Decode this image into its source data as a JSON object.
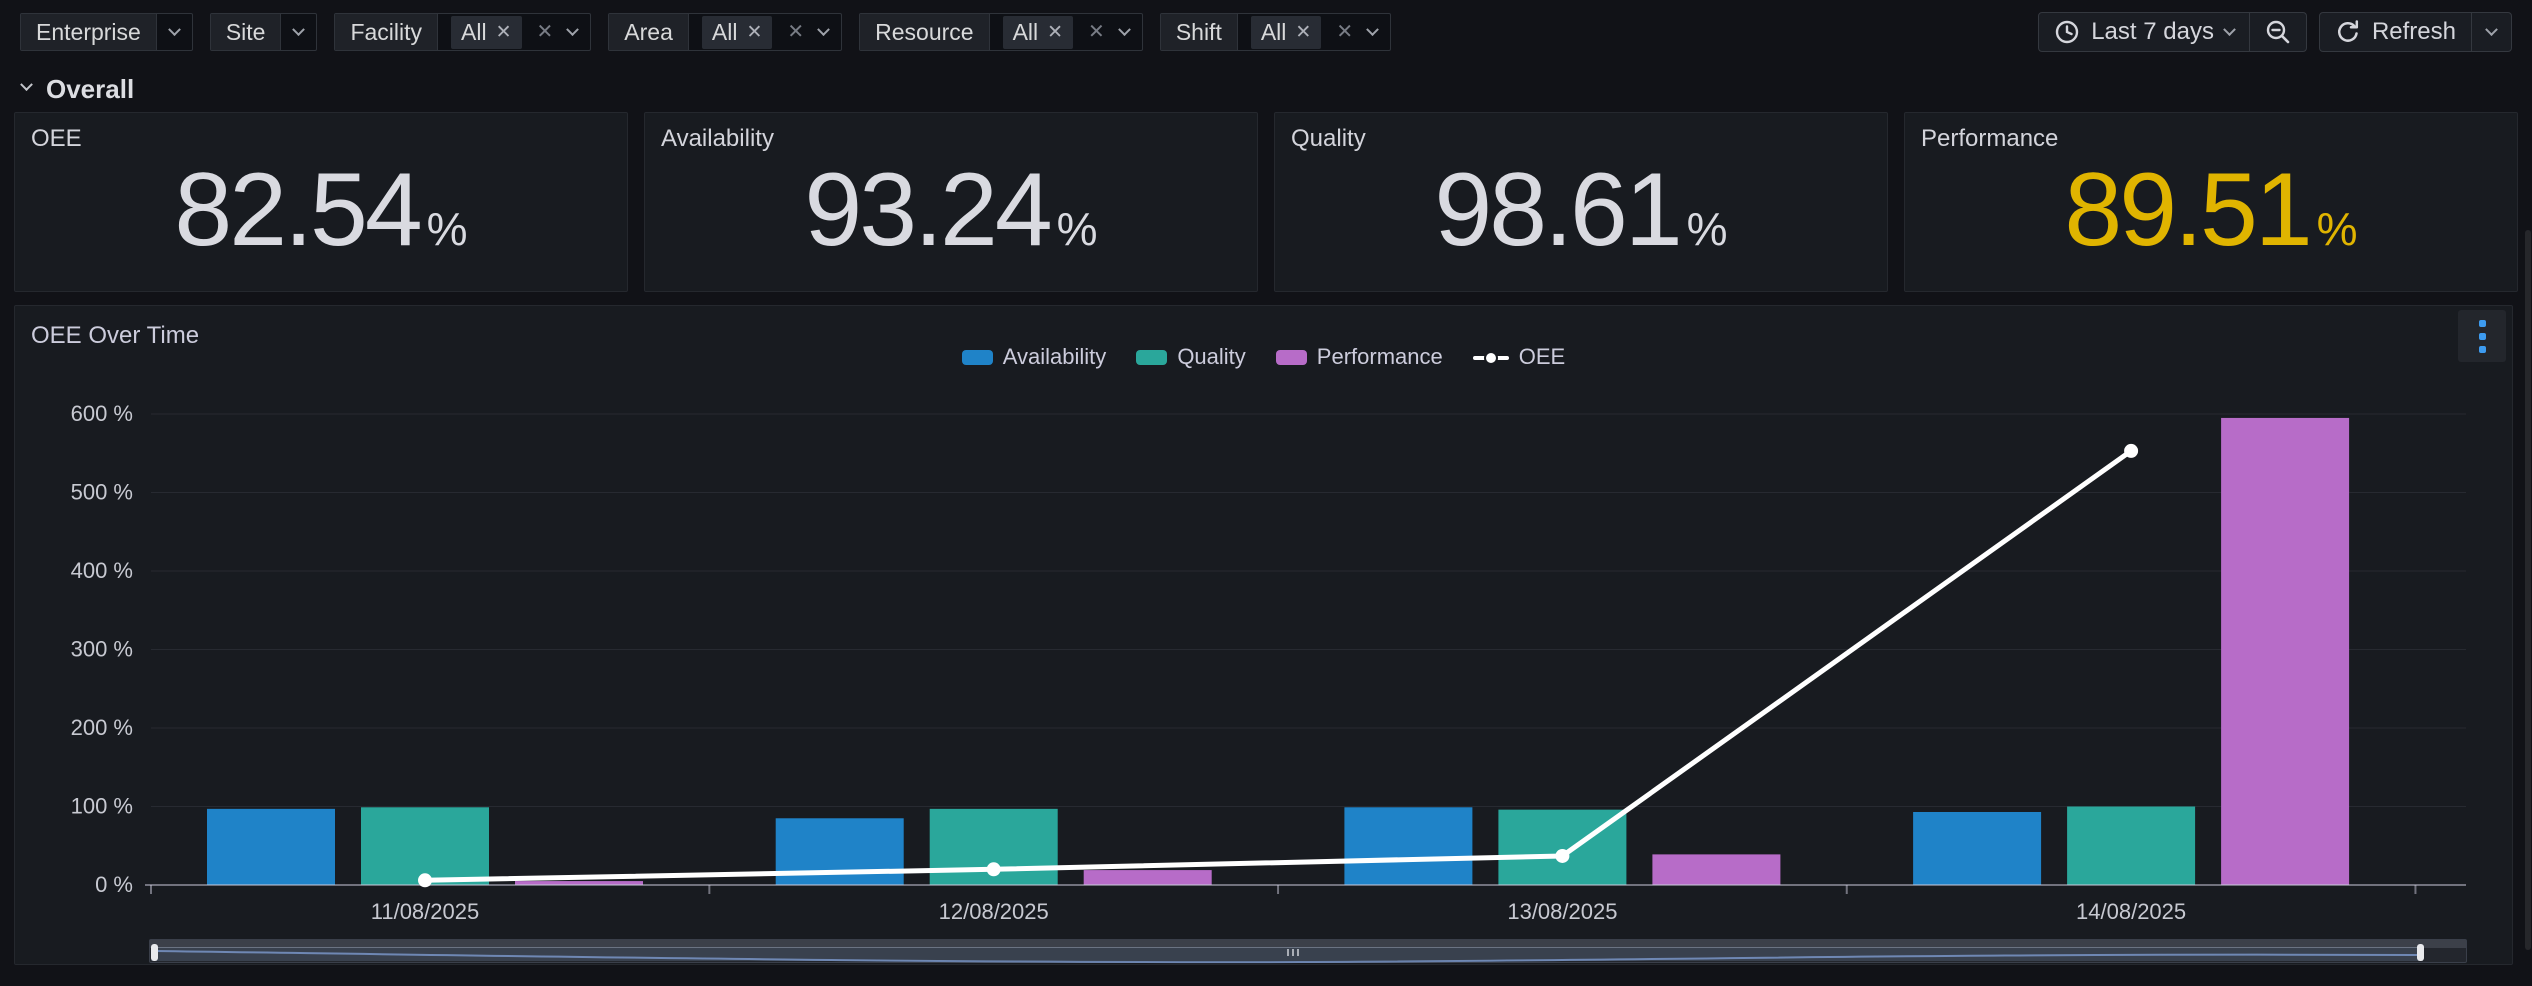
{
  "filters": {
    "clear_glyph": "✕",
    "items": [
      {
        "label": "Enterprise",
        "chip": null
      },
      {
        "label": "Site",
        "chip": null
      },
      {
        "label": "Facility",
        "chip": "All"
      },
      {
        "label": "Area",
        "chip": "All"
      },
      {
        "label": "Resource",
        "chip": "All"
      },
      {
        "label": "Shift",
        "chip": "All"
      }
    ]
  },
  "toolbar": {
    "time_range_label": "Last 7 days",
    "refresh_label": "Refresh",
    "icons": [
      "clock-icon",
      "zoom-out-icon",
      "refresh-icon",
      "chevron-down-icon"
    ]
  },
  "section": {
    "title": "Overall"
  },
  "stats": [
    {
      "title": "OEE",
      "value": "82.54",
      "unit": "%",
      "color": "#D9DAE0"
    },
    {
      "title": "Availability",
      "value": "93.24",
      "unit": "%",
      "color": "#D9DAE0"
    },
    {
      "title": "Quality",
      "value": "98.61",
      "unit": "%",
      "color": "#D9DAE0"
    },
    {
      "title": "Performance",
      "value": "89.51",
      "unit": "%",
      "color": "#E0B400"
    }
  ],
  "chart_panel": {
    "title": "OEE Over Time"
  },
  "chart_data": {
    "type": "bar",
    "subtype": "grouped bars with line overlay",
    "title": "OEE Over Time",
    "categories": [
      "11/08/2025",
      "12/08/2025",
      "13/08/2025",
      "14/08/2025"
    ],
    "series": [
      {
        "name": "Availability",
        "type": "bar",
        "color": "#1F83C8",
        "values": [
          97,
          85,
          99,
          93
        ]
      },
      {
        "name": "Quality",
        "type": "bar",
        "color": "#2AA79B",
        "values": [
          99,
          97,
          96,
          100
        ]
      },
      {
        "name": "Performance",
        "type": "bar",
        "color": "#B76CC8",
        "values": [
          5,
          19,
          39,
          595
        ]
      },
      {
        "name": "OEE",
        "type": "line",
        "color": "#FFFFFF",
        "values": [
          6,
          20,
          37,
          553
        ]
      }
    ],
    "ylabel_suffix": " %",
    "ylim": [
      0,
      600
    ],
    "ytick_step": 100,
    "grid": true,
    "legend_position": "top-center"
  }
}
